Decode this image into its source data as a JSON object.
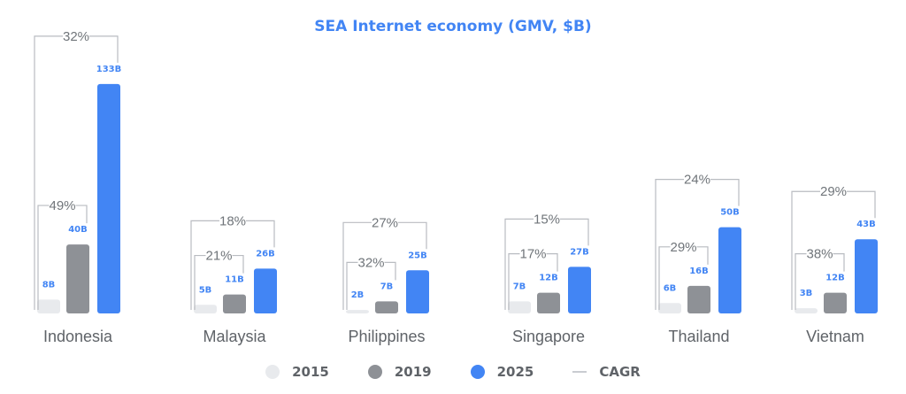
{
  "chart_data": {
    "type": "bar",
    "title": "SEA Internet economy (GMV, $B)",
    "categories": [
      "Indonesia",
      "Malaysia",
      "Philippines",
      "Singapore",
      "Thailand",
      "Vietnam"
    ],
    "series": [
      {
        "name": "2015",
        "color": "#e8eaed",
        "values": [
          8,
          5,
          2,
          7,
          6,
          3
        ],
        "labels": [
          "8B",
          "5B",
          "2B",
          "7B",
          "6B",
          "3B"
        ]
      },
      {
        "name": "2019",
        "color": "#8e9196",
        "values": [
          40,
          11,
          7,
          12,
          16,
          12
        ],
        "labels": [
          "40B",
          "11B",
          "7B",
          "12B",
          "16B",
          "12B"
        ]
      },
      {
        "name": "2025",
        "color": "#4285f4",
        "values": [
          133,
          26,
          25,
          27,
          50,
          43
        ],
        "labels": [
          "133B",
          "26B",
          "25B",
          "27B",
          "50B",
          "43B"
        ]
      }
    ],
    "cagr_2015_2019": [
      "49%",
      "21%",
      "32%",
      "17%",
      "29%",
      "38%"
    ],
    "cagr_2015_2025": [
      "32%",
      "18%",
      "27%",
      "15%",
      "24%",
      "29%"
    ],
    "ylim": [
      0,
      135
    ],
    "legend": {
      "position": "bottom",
      "items": [
        {
          "label": "2015",
          "color": "#e8eaed",
          "kind": "dot"
        },
        {
          "label": "2019",
          "color": "#8e9196",
          "kind": "dot"
        },
        {
          "label": "2025",
          "color": "#4285f4",
          "kind": "dot"
        },
        {
          "label": "CAGR",
          "color": "#c9ccd1",
          "kind": "line"
        }
      ]
    }
  },
  "colors": {
    "title": "#4285f4",
    "category_label": "#5f6368",
    "cagr_label": "#70757a",
    "bracket": "#b9bcc1",
    "value_label_light": "#4285f4"
  }
}
